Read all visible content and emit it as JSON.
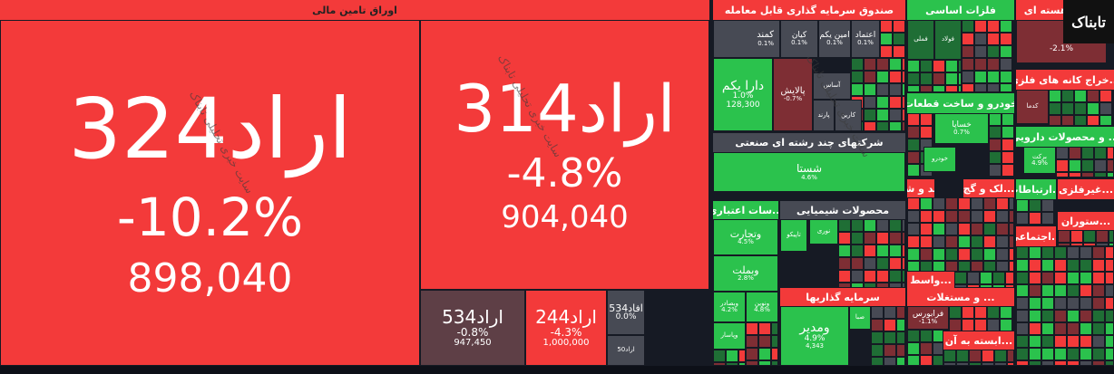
{
  "logo": "تابناک",
  "watermark": "سایت خبری تحلیلی تابناک",
  "sectors": [
    {
      "title": "اوراق تامین مالی",
      "tiles": [
        {
          "symbol": "اراد324",
          "change": "-10.2%",
          "volume": "898,040"
        },
        {
          "symbol": "اراد314",
          "change": "-4.8%",
          "volume": "904,040"
        },
        {
          "symbol": "اراد534",
          "change": "-0.8%",
          "volume": "947,450"
        },
        {
          "symbol": "اراد244",
          "change": "-4.3%",
          "volume": "1,000,000"
        },
        {
          "symbol": "افاد534",
          "change": "0.0%"
        },
        {
          "symbol": "اراد50"
        }
      ]
    },
    {
      "title": "صندوق سرمایه گذاری قابل معامله",
      "tiles": [
        {
          "symbol": "کمند",
          "change": "0.1%"
        },
        {
          "symbol": "کیان",
          "change": "0.1%"
        },
        {
          "symbol": "امین یکم",
          "change": "0.1%"
        },
        {
          "symbol": "اعتماد",
          "change": "0.1%"
        },
        {
          "symbol": "دارا یکم",
          "change": "1.0%",
          "volume": "128,300"
        },
        {
          "symbol": "پالایش",
          "change": "-0.7%"
        },
        {
          "symbol": "آساس"
        },
        {
          "symbol": "پارند"
        },
        {
          "symbol": "کارین"
        }
      ]
    },
    {
      "title": "شرکتهای چند رشته ای صنعتی",
      "tiles": [
        {
          "symbol": "شستا",
          "change": "4.6%"
        }
      ]
    },
    {
      "title": "...سات اعتباری",
      "tiles": [
        {
          "symbol": "وتجارت",
          "change": "4.5%"
        },
        {
          "symbol": "وبملت",
          "change": "2.8%"
        },
        {
          "symbol": "ونوین",
          "change": "4.8%"
        },
        {
          "symbol": "وبصادر",
          "change": "4.2%"
        },
        {
          "symbol": "وپاسار"
        }
      ]
    },
    {
      "title": "محصولات شیمیایی",
      "tiles": [
        {
          "symbol": "تاپیکو"
        },
        {
          "symbol": "نوری"
        }
      ]
    },
    {
      "title": "سرمایه گذاریها",
      "tiles": [
        {
          "symbol": "ومدیر",
          "change": "4.9%",
          "volume": "4,343"
        },
        {
          "symbol": "صبا"
        }
      ]
    },
    {
      "title": "فلزات اساسی",
      "tiles": [
        {
          "symbol": "فملی"
        },
        {
          "symbol": "فولاد"
        }
      ]
    },
    {
      "title": "خودرو و ساخت قطعات",
      "tiles": [
        {
          "symbol": "خساپا",
          "change": "0.7%"
        },
        {
          "symbol": "خودرو"
        }
      ]
    },
    {
      "title": "...ند و شکر",
      "tiles": []
    },
    {
      "title": "...لک و گچ",
      "tiles": []
    },
    {
      "title": "...واسط",
      "tiles": []
    },
    {
      "title": "... و مستغلات",
      "tiles": [
        {
          "symbol": "فرابورس",
          "change": "-1.1%"
        }
      ]
    },
    {
      "title": "...ابسته به آن",
      "tiles": []
    },
    {
      "title": "...وخت هسته ای",
      "tiles": [
        {
          "change": "-2.1%"
        }
      ]
    },
    {
      "title": "...خراج کانه های فلزی",
      "tiles": [
        {
          "symbol": "کدما"
        }
      ]
    },
    {
      "title": "... و محصولات دارویی",
      "tiles": [
        {
          "symbol": "برکت",
          "change": "4.9%"
        }
      ]
    },
    {
      "title": "...ارتباطات",
      "tiles": []
    },
    {
      "title": "...غیرفلزی",
      "tiles": []
    },
    {
      "title": "...ستوران",
      "tiles": []
    },
    {
      "title": "...اجتماعی",
      "tiles": []
    }
  ]
}
